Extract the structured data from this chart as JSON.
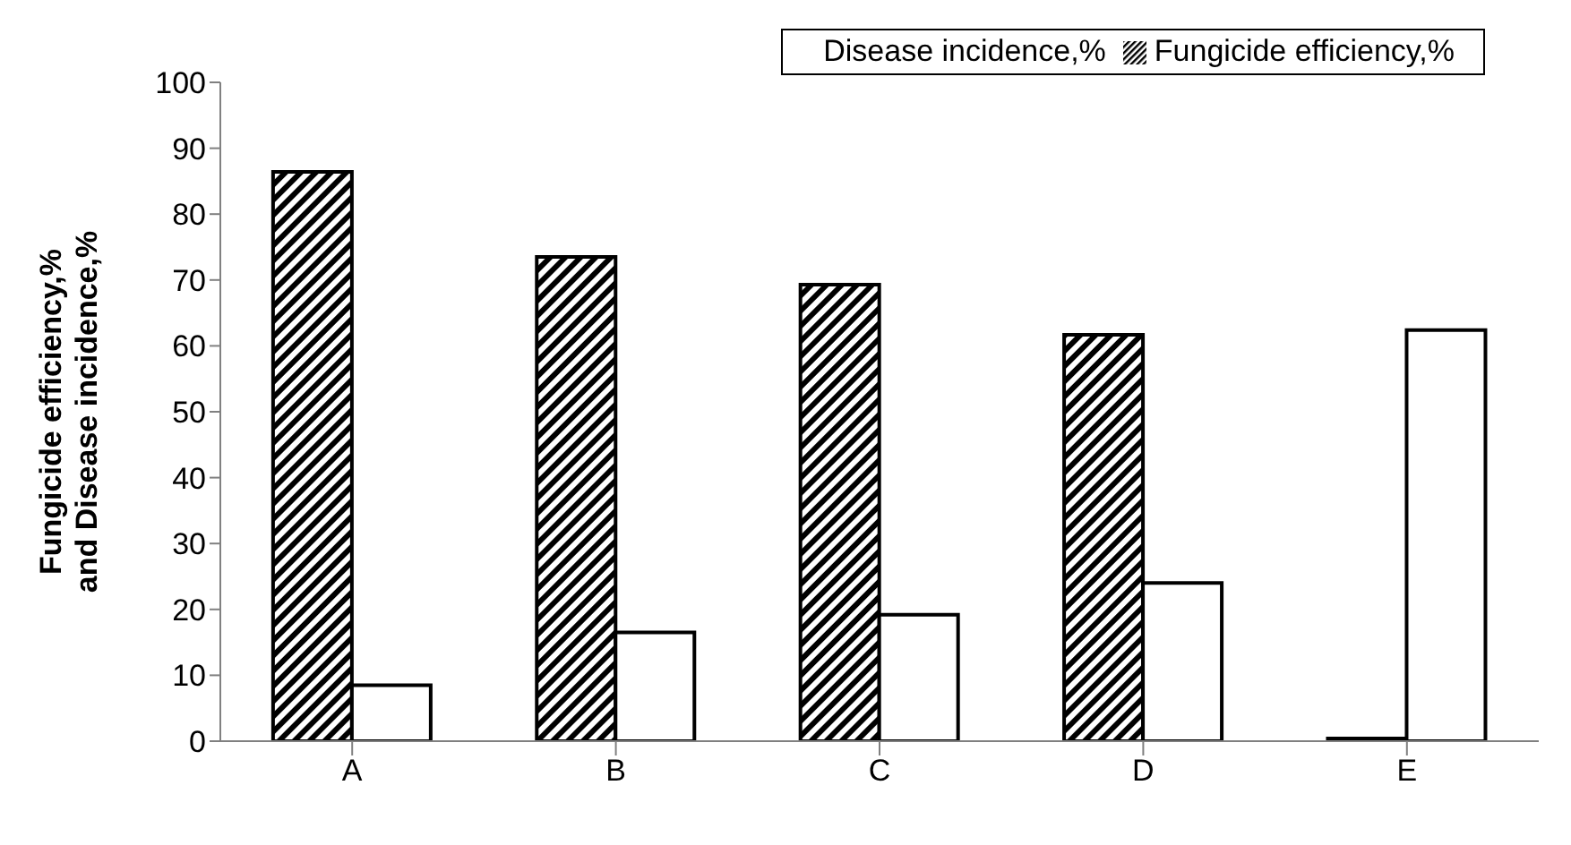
{
  "chart_data": {
    "type": "bar",
    "categories": [
      "A",
      "B",
      "C",
      "D",
      "E"
    ],
    "ylabel": "Fungicide efficiency,% and Disease incidence,%",
    "ylim": [
      0,
      100
    ],
    "yticks": [
      0,
      10,
      20,
      30,
      40,
      50,
      60,
      70,
      80,
      90,
      100
    ],
    "grid": false,
    "legend": "top right",
    "series": [
      {
        "name": "Fungicide efficiency,%",
        "color": "#000000",
        "values": [
          86.4,
          73.5,
          69.3,
          61.7,
          0.4
        ]
      },
      {
        "name": "Disease incidence,%",
        "color": "#ffffff",
        "values": [
          8.5,
          16.5,
          19.2,
          24.0,
          62.4
        ]
      }
    ]
  }
}
